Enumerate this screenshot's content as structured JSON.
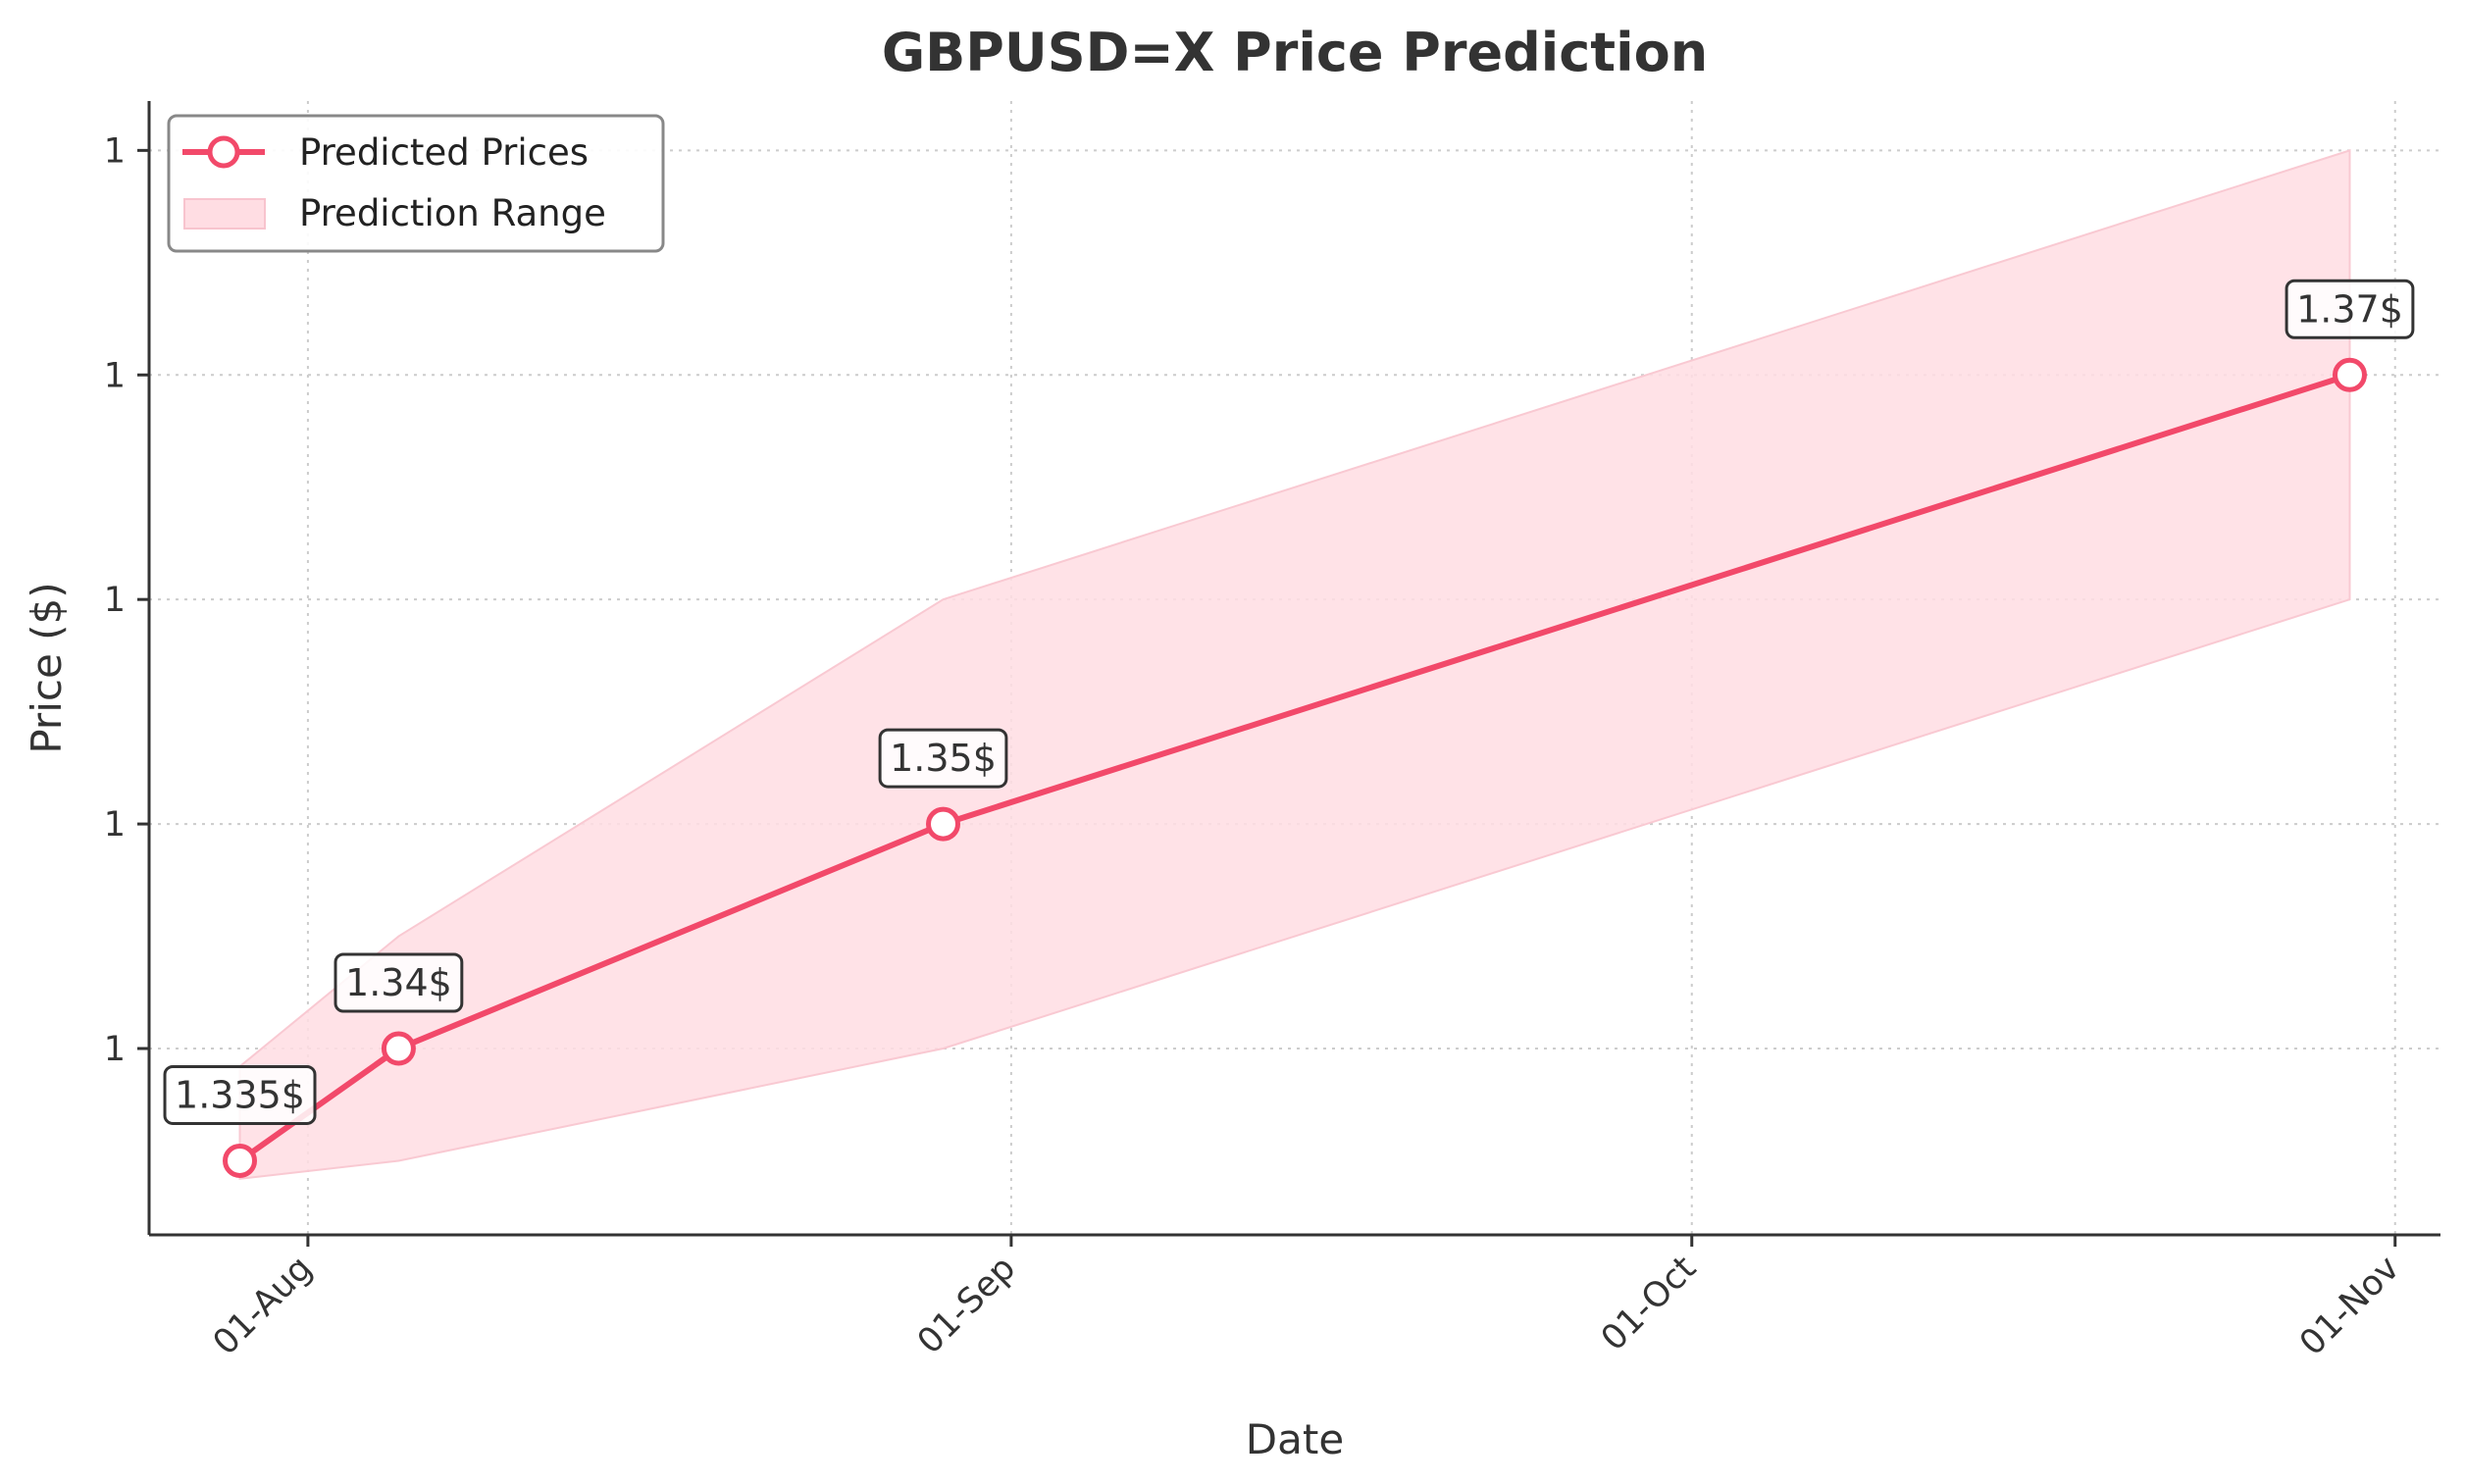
{
  "chart_data": {
    "type": "line",
    "title": "GBPUSD=X Price Prediction",
    "xlabel": "Date",
    "ylabel": "Price ($)",
    "x_ticks": [
      {
        "date": "2025-08-01",
        "label": "01-Aug"
      },
      {
        "date": "2025-09-01",
        "label": "01-Sep"
      },
      {
        "date": "2025-10-01",
        "label": "01-Oct"
      },
      {
        "date": "2025-11-01",
        "label": "01-Nov"
      }
    ],
    "y_ticks": [
      {
        "value": 1.34,
        "label": "1"
      },
      {
        "value": 1.35,
        "label": "1"
      },
      {
        "value": 1.36,
        "label": "1"
      },
      {
        "value": 1.37,
        "label": "1"
      },
      {
        "value": 1.38,
        "label": "1"
      }
    ],
    "xlim": [
      "2025-07-25",
      "2025-11-03"
    ],
    "ylim": [
      1.3317,
      1.3822
    ],
    "grid": true,
    "legend_position": "top-left",
    "series": [
      {
        "name": "Predicted Prices",
        "color": "#f2496a",
        "points": [
          {
            "date": "2025-07-29",
            "value": 1.335,
            "label": "1.335$"
          },
          {
            "date": "2025-08-05",
            "value": 1.34,
            "label": "1.34$"
          },
          {
            "date": "2025-08-29",
            "value": 1.35,
            "label": "1.35$"
          },
          {
            "date": "2025-10-30",
            "value": 1.37,
            "label": "1.37$"
          }
        ]
      }
    ],
    "range": {
      "name": "Prediction Range",
      "color": "#ffdde3",
      "points": [
        {
          "date": "2025-07-29",
          "low": 1.3342,
          "high": 1.3392
        },
        {
          "date": "2025-08-05",
          "low": 1.335,
          "high": 1.345
        },
        {
          "date": "2025-08-29",
          "low": 1.34,
          "high": 1.36
        },
        {
          "date": "2025-10-30",
          "low": 1.36,
          "high": 1.38
        }
      ]
    }
  }
}
